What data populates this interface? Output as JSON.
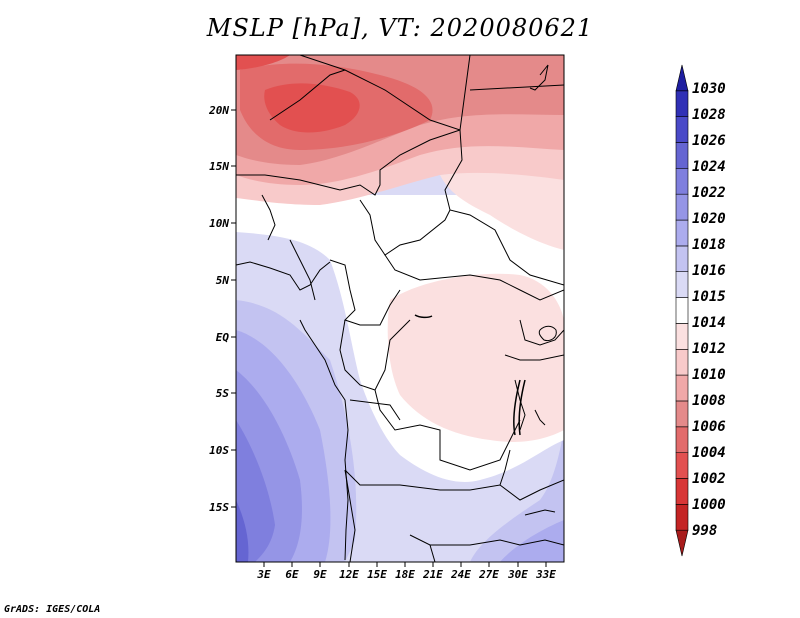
{
  "title": "MSLP [hPa], VT: 2020080621",
  "credit": "GrADS: IGES/COLA",
  "latitude_labels": [
    "20N",
    "15N",
    "10N",
    "5N",
    "EQ",
    "5S",
    "10S",
    "15S"
  ],
  "longitude_labels": [
    "3E",
    "6E",
    "9E",
    "12E",
    "15E",
    "18E",
    "21E",
    "24E",
    "27E",
    "30E",
    "33E"
  ],
  "colorbar": {
    "levels": [
      "998",
      "1000",
      "1002",
      "1004",
      "1006",
      "1008",
      "1010",
      "1012",
      "1014",
      "1015",
      "1016",
      "1018",
      "1020",
      "1022",
      "1024",
      "1026",
      "1028",
      "1030"
    ],
    "colors": [
      "#a81c1c",
      "#c42424",
      "#d83636",
      "#e25050",
      "#e26b6b",
      "#e48a8a",
      "#f0a8a8",
      "#f8caca",
      "#fbe0e0",
      "#ffffff",
      "#dadaf5",
      "#c3c3f1",
      "#acacee",
      "#9595e6",
      "#7f7fde",
      "#6565d2",
      "#4a4ac8",
      "#3030b6",
      "#1e1ea0"
    ]
  }
}
